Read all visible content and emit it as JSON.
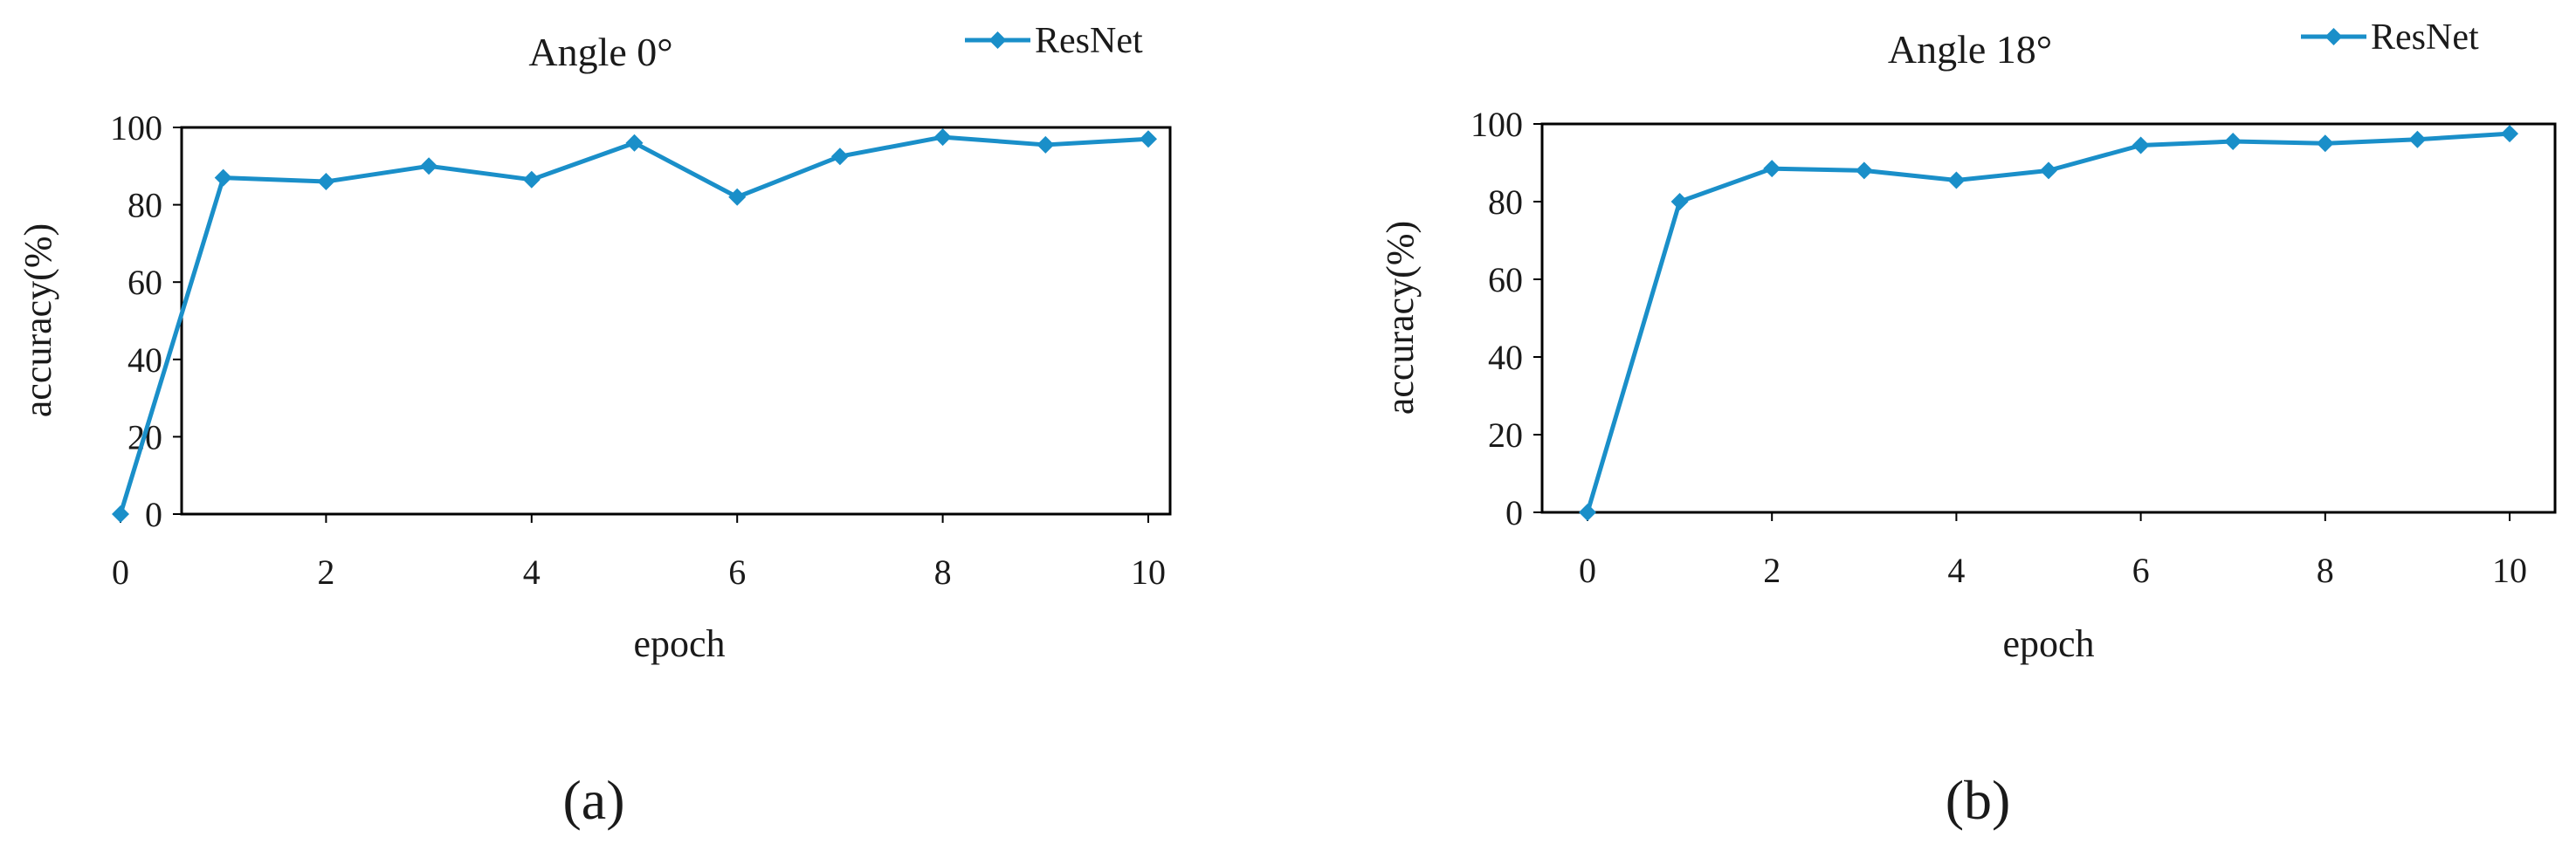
{
  "colors": {
    "series": "#1a8fc9",
    "axis": "#000000",
    "text": "#1a1a1a",
    "background": "#ffffff"
  },
  "panel_labels": [
    "(a)",
    "(b)"
  ],
  "chart_data": [
    {
      "type": "line",
      "title": "Angle 0°",
      "xlabel": "epoch",
      "ylabel": "accuracy(%)",
      "xlim": [
        0,
        10
      ],
      "ylim": [
        0,
        100
      ],
      "xticks": [
        0,
        2,
        4,
        6,
        8,
        10
      ],
      "yticks": [
        0,
        20,
        40,
        60,
        80,
        100
      ],
      "grid": false,
      "legend": "top-right",
      "marker": "diamond",
      "series": [
        {
          "name": "ResNet",
          "x": [
            0,
            1,
            2,
            3,
            4,
            5,
            6,
            7,
            8,
            9,
            10
          ],
          "y": [
            0,
            87,
            86,
            90,
            86.5,
            96,
            82,
            92.5,
            97.5,
            95.5,
            97
          ]
        }
      ]
    },
    {
      "type": "line",
      "title": "Angle 18°",
      "xlabel": "epoch",
      "ylabel": "accuracy(%)",
      "xlim": [
        0,
        10
      ],
      "ylim": [
        0,
        100
      ],
      "xticks": [
        0,
        2,
        4,
        6,
        8,
        10
      ],
      "yticks": [
        0,
        20,
        40,
        60,
        80,
        100
      ],
      "grid": false,
      "legend": "top-right",
      "marker": "diamond",
      "series": [
        {
          "name": "ResNet",
          "x": [
            0,
            1,
            2,
            3,
            4,
            5,
            6,
            7,
            8,
            9,
            10
          ],
          "y": [
            0,
            80,
            88.5,
            88,
            85.5,
            88,
            94.5,
            95.5,
            95,
            96,
            97.5
          ]
        }
      ]
    }
  ]
}
